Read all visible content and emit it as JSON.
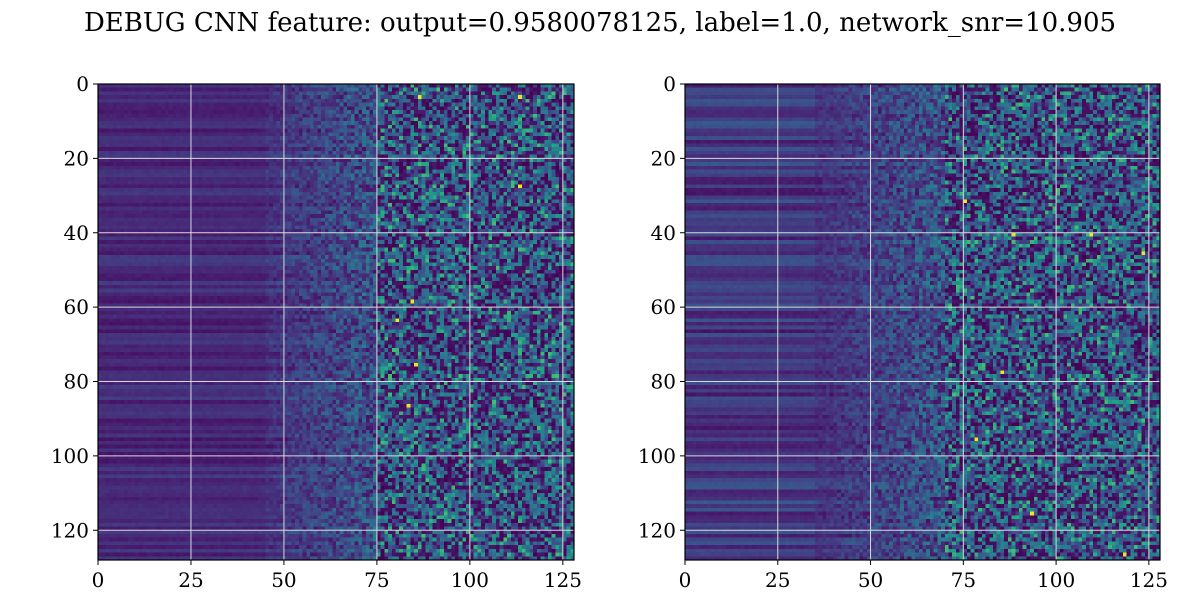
{
  "figure": {
    "title": "DEBUG CNN feature: output=0.9580078125, label=1.0, network_snr=10.905"
  },
  "colors": {
    "colormap": "viridis",
    "grid": "#d9d9d9",
    "frame": "#000000"
  },
  "chart_data": [
    {
      "type": "heatmap",
      "colormap": "viridis",
      "grid": true,
      "xlim": [
        0,
        128
      ],
      "ylim": [
        128,
        0
      ],
      "xticks": [
        0,
        25,
        50,
        75,
        100,
        125
      ],
      "yticks": [
        0,
        20,
        40,
        60,
        80,
        100,
        120
      ],
      "xtick_labels": [
        "0",
        "25",
        "50",
        "75",
        "100",
        "125"
      ],
      "ytick_labels": [
        "0",
        "20",
        "40",
        "60",
        "80",
        "100",
        "120"
      ],
      "rows": 128,
      "cols": 128,
      "description": "",
      "profile": {
        "dark_until_col": 45,
        "transition_until_col": 75,
        "bright_spots": [
          [
            3,
            86
          ],
          [
            3,
            113
          ],
          [
            27,
            113
          ],
          [
            58,
            84
          ],
          [
            75,
            85
          ],
          [
            86,
            83
          ],
          [
            63,
            80
          ]
        ]
      }
    },
    {
      "type": "heatmap",
      "colormap": "viridis",
      "grid": true,
      "xlim": [
        0,
        128
      ],
      "ylim": [
        128,
        0
      ],
      "xticks": [
        0,
        25,
        50,
        75,
        100,
        125
      ],
      "yticks": [
        0,
        20,
        40,
        60,
        80,
        100,
        120
      ],
      "xtick_labels": [
        "0",
        "25",
        "50",
        "75",
        "100",
        "125"
      ],
      "ytick_labels": [
        "0",
        "20",
        "40",
        "60",
        "80",
        "100",
        "120"
      ],
      "rows": 128,
      "cols": 128,
      "description": "",
      "profile": {
        "dark_until_col": 35,
        "transition_until_col": 70,
        "bright_spots": [
          [
            31,
            75
          ],
          [
            40,
            88
          ],
          [
            40,
            109
          ],
          [
            45,
            123
          ],
          [
            77,
            85
          ],
          [
            95,
            78
          ],
          [
            115,
            93
          ],
          [
            126,
            118
          ]
        ]
      }
    }
  ]
}
